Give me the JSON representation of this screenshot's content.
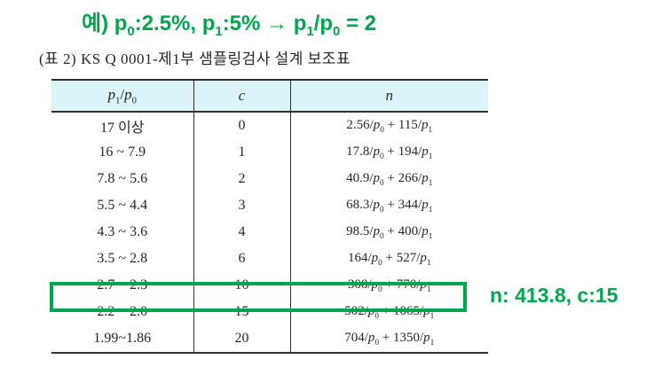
{
  "colors": {
    "green": "#00a64e",
    "header_bg": "#daf4f8",
    "text": "#262626",
    "line": "#2f2f2f"
  },
  "annotation": {
    "text": "예) p_0:2.5%, p_1:5% → p_1/p_0 = 2"
  },
  "title": "(표 2) KS Q 0001-제1부 샘플링검사 설계 보조표",
  "table": {
    "headers": {
      "ratio": "p_1/p_0",
      "c": "c",
      "n": "n"
    },
    "rows": [
      {
        "ratio": "17  이상",
        "c": "0",
        "n": "2.56/p_0 + 115/p_1"
      },
      {
        "ratio": "16 ~ 7.9",
        "c": "1",
        "n": "17.8/p_0 + 194/p_1"
      },
      {
        "ratio": "7.8 ~ 5.6",
        "c": "2",
        "n": "40.9/p_0 + 266/p_1"
      },
      {
        "ratio": "5.5 ~ 4.4",
        "c": "3",
        "n": "68.3/p_0 + 344/p_1"
      },
      {
        "ratio": "4.3 ~ 3.6",
        "c": "4",
        "n": "98.5/p_0 + 400/p_1"
      },
      {
        "ratio": "3.5 ~ 2.8",
        "c": "6",
        "n": "164/p_0 + 527/p_1"
      },
      {
        "ratio": "2.7 ~ 2.3",
        "c": "10",
        "n": "308/p_0 + 770/p_1"
      },
      {
        "ratio": "2.2 ~ 2.0",
        "c": "15",
        "n": "502/p_0 + 1065/p_1"
      },
      {
        "ratio": "1.99~1.86",
        "c": "20",
        "n": "704/p_0 + 1350/p_1"
      }
    ]
  },
  "highlight": {
    "highlighted_row_index": 7,
    "result_text": "n: 413.8, c:15"
  }
}
